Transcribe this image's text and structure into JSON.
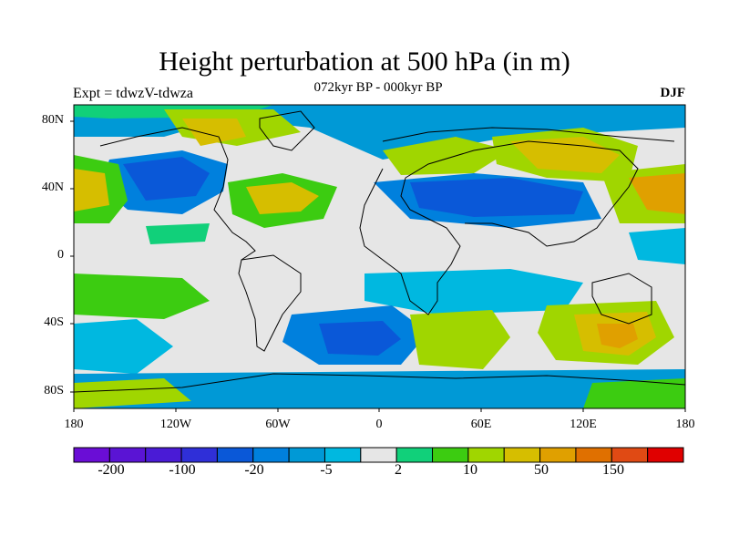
{
  "title": "Height perturbation at 500 hPa (in m)",
  "subtitle": "072kyr BP - 000kyr BP",
  "experiment_label": "Expt = tdwzV-tdwza",
  "season_label": "DJF",
  "axes": {
    "lat_ticks": [
      "80N",
      "40N",
      "0",
      "40S",
      "80S"
    ],
    "lon_ticks": [
      "180",
      "120W",
      "60W",
      "0",
      "60E",
      "120E",
      "180"
    ]
  },
  "colorbar": {
    "colors": [
      "#6a0dd6",
      "#5a14d4",
      "#4a1bd6",
      "#2f2fd8",
      "#0a58d8",
      "#0080dd",
      "#0099d6",
      "#00b8e0",
      "#e6e6e6",
      "#11d07a",
      "#3ccc11",
      "#a0d600",
      "#d6be00",
      "#e0a000",
      "#e07000",
      "#e04a14",
      "#e00000"
    ],
    "labels": [
      "-200",
      "-100",
      "-20",
      "-5",
      "2",
      "10",
      "50",
      "150"
    ]
  }
}
